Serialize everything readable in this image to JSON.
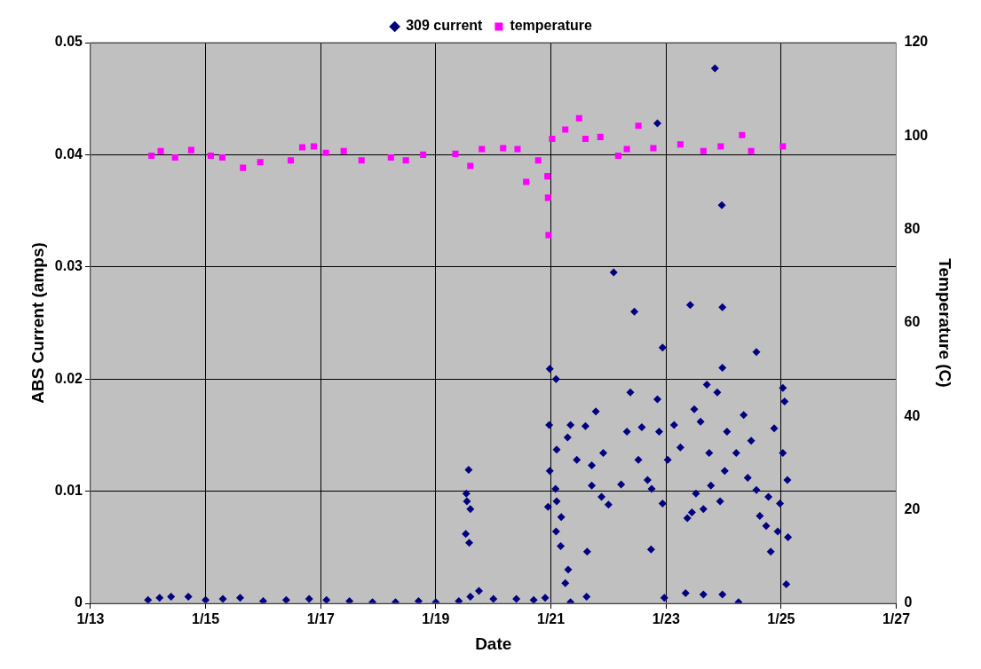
{
  "chart_data": {
    "type": "scatter",
    "xlabel": "Date",
    "ylabel": "ABS Current (amps)",
    "y2label": "Temperature (C)",
    "xlim": [
      "--01-13",
      "--01-27"
    ],
    "xticks": [
      {
        "value": "--01-13",
        "label": "1/13"
      },
      {
        "value": "--01-15",
        "label": "1/15"
      },
      {
        "value": "--01-17",
        "label": "1/17"
      },
      {
        "value": "--01-19",
        "label": "1/19"
      },
      {
        "value": "--01-21",
        "label": "1/21"
      },
      {
        "value": "--01-23",
        "label": "1/23"
      },
      {
        "value": "--01-25",
        "label": "1/25"
      },
      {
        "value": "--01-27",
        "label": "1/27"
      }
    ],
    "ylim": [
      0,
      0.05
    ],
    "yticks": [
      0,
      0.01,
      0.02,
      0.03,
      0.04,
      0.05
    ],
    "y2lim": [
      0,
      120
    ],
    "y2ticks": [
      0,
      20,
      40,
      60,
      80,
      100,
      120
    ],
    "grid": true,
    "legend": "top",
    "series": [
      {
        "name": "309 current",
        "color": "#000080",
        "marker": "diamond",
        "x": [
          "--01-14T00:00",
          "--01-14T04:48",
          "--01-14T09:36",
          "--01-14T16:48",
          "--01-15T00:00",
          "--01-15T07:12",
          "--01-15T14:24",
          "--01-16T00:00",
          "--01-16T09:36",
          "--01-16T19:12",
          "--01-17T02:24",
          "--01-17T12:00",
          "--01-17T21:36",
          "--01-18T07:12",
          "--01-18T16:48",
          "--01-19T00:00",
          "--01-19T09:36",
          "--01-19T14:24",
          "--01-19T18:00",
          "--01-20T00:00",
          "--01-20T09:36",
          "--01-20T16:48",
          "--01-20T21:36",
          "--01-19T13:41",
          "--01-19T12:43",
          "--01-19T12:58",
          "--01-19T14:24",
          "--01-19T12:29",
          "--01-19T13:55",
          "--01-20T23:31",
          "--01-21T02:10",
          "--01-20T23:17",
          "--01-21T02:24",
          "--01-20T23:31",
          "--01-21T01:55",
          "--01-20T22:48",
          "--01-21T02:24",
          "--01-21T04:19",
          "--01-21T02:10",
          "--01-21T04:05",
          "--01-21T07:12",
          "--01-21T06:00",
          "--01-21T08:10",
          "--01-21T18:43",
          "--01-22T09:07",
          "--01-22T22:34",
          "--01-24T13:41",
          "--01-23T23:31",
          "--01-23T21:22",
          "--01-25T00:43",
          "--01-25T01:26",
          "--01-22T20:24",
          "--01-23T11:46",
          "--01-23T20:24",
          "--01-23T23:17",
          "--01-23T23:31",
          "--01-22T02:10",
          "--01-22T10:48",
          "--01-23T10:05",
          "--01-23T17:02",
          "--01-22T20:24",
          "--01-21T15:07",
          "--01-22T17:46",
          "--01-21T14:53",
          "--01-22T23:17",
          "--01-23T08:10",
          "--01-23T15:36",
          "--01-23T23:31",
          "--01-24T06:14",
          "--01-25T02:10",
          "--01-24T19:41",
          "--01-25T02:53",
          "--01-24T22:34",
          "--01-24T17:46",
          "--01-21T08:10",
          "--01-21T06:58",
          "--01-21T10:48",
          "--01-21T14:24",
          "--01-21T17:02",
          "--01-21T17:02",
          "--01-21T21:50",
          "--01-21T21:07",
          "--01-22T00:00",
          "--01-22T05:17",
          "--01-22T07:41",
          "--01-22T12:29",
          "--01-22T13:55",
          "--01-22T16:19",
          "--01-22T18:00",
          "--01-22T22:34",
          "--01-22T21:07",
          "--01-23T00:43",
          "--01-23T03:22",
          "--01-23T06:00",
          "--01-23T08:53",
          "--01-23T10:48",
          "--01-23T12:29",
          "--01-23T14:24",
          "--01-23T15:36",
          "--01-23T18:00",
          "--01-23T18:43",
          "--01-23T22:34",
          "--01-24T00:29",
          "--01-24T01:26",
          "--01-24T05:17",
          "--01-24T08:24",
          "--01-24T11:31",
          "--01-24T10:05",
          "--01-24T13:41",
          "--01-24T15:07",
          "--01-24T18:43",
          "--01-24T21:07",
          "--01-25T00:43",
          "--01-25T02:38",
          "--01-24T23:31"
        ],
        "values": [
          0.0003,
          0.0005,
          0.0006,
          0.0006,
          0.0003,
          0.0004,
          0.0005,
          0.0002,
          0.0003,
          0.0004,
          0.0003,
          0.0002,
          0.0001,
          0.0001,
          0.0002,
          0.0001,
          0.0002,
          0.0006,
          0.0011,
          0.0004,
          0.0004,
          0.0003,
          0.0005,
          0.0119,
          0.0098,
          0.0091,
          0.0084,
          0.0062,
          0.0054,
          0.0209,
          0.02,
          0.0159,
          0.0137,
          0.0118,
          0.0102,
          0.0086,
          0.0091,
          0.0077,
          0.0064,
          0.0051,
          0.003,
          0.0018,
          0.0001,
          0.0171,
          0.0188,
          0.0228,
          0.0224,
          0.021,
          0.0188,
          0.0192,
          0.018,
          0.0182,
          0.0173,
          0.0477,
          0.0355,
          0.0264,
          0.0295,
          0.026,
          0.0266,
          0.0195,
          0.0428,
          0.0046,
          0.0048,
          0.0006,
          0.0005,
          0.0009,
          0.0008,
          0.0008,
          0.0001,
          0.0017,
          0.0046,
          0.0059,
          0.0064,
          0.0069,
          0.0159,
          0.0148,
          0.0128,
          0.0158,
          0.0123,
          0.0105,
          0.0134,
          0.0095,
          0.0088,
          0.0106,
          0.0153,
          0.0128,
          0.0157,
          0.011,
          0.0102,
          0.0089,
          0.0153,
          0.0128,
          0.0159,
          0.0139,
          0.0076,
          0.0081,
          0.0098,
          0.0162,
          0.0084,
          0.0134,
          0.0105,
          0.0091,
          0.0118,
          0.0153,
          0.0134,
          0.0168,
          0.0145,
          0.0112,
          0.0101,
          0.0078,
          0.0095,
          0.0156,
          0.0134,
          0.011,
          0.0089
        ]
      },
      {
        "name": "temperature",
        "color": "#ff00ff",
        "marker": "square",
        "axis": "y2",
        "x": [
          "--01-14T01:26",
          "--01-14T05:17",
          "--01-14T11:17",
          "--01-14T18:00",
          "--01-15T02:10",
          "--01-15T06:58",
          "--01-15T15:36",
          "--01-15T22:48",
          "--01-16T11:31",
          "--01-16T16:19",
          "--01-16T21:07",
          "--01-17T02:10",
          "--01-17T09:36",
          "--01-17T17:02",
          "--01-18T05:17",
          "--01-18T11:31",
          "--01-18T18:43",
          "--01-19T08:10",
          "--01-19T14:24",
          "--01-19T19:12",
          "--01-20T04:05",
          "--01-20T10:05",
          "--01-20T13:41",
          "--01-20T18:43",
          "--01-20T22:34",
          "--01-20T22:48",
          "--01-20T23:02",
          "--01-21T00:29",
          "--01-21T06:00",
          "--01-21T11:46",
          "--01-21T14:24",
          "--01-21T20:38",
          "--01-22T04:05",
          "--01-22T07:41",
          "--01-22T12:29",
          "--01-22T18:43",
          "--01-23T06:00",
          "--01-23T15:36",
          "--01-23T22:48",
          "--01-24T07:41",
          "--01-24T11:31",
          "--01-25T00:43"
        ],
        "values": [
          95.8,
          96.8,
          95.4,
          97,
          95.8,
          95.4,
          93.2,
          94.4,
          94.8,
          97.6,
          97.8,
          96.4,
          96.8,
          94.8,
          95.4,
          94.8,
          96,
          96.2,
          93.6,
          97.2,
          97.4,
          97.2,
          90.2,
          94.8,
          91.4,
          86.8,
          78.8,
          99.4,
          101.4,
          103.8,
          99.4,
          99.8,
          95.8,
          97.2,
          102.2,
          97.4,
          98.2,
          96.8,
          97.8,
          100.2,
          96.8,
          97.8
        ]
      }
    ]
  }
}
